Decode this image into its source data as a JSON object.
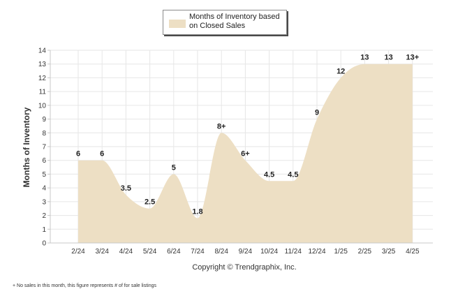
{
  "chart_data": {
    "type": "area",
    "title": "",
    "xlabel": "",
    "ylabel": "Months of Inventory",
    "ylim": [
      0,
      14
    ],
    "ytick_step": 1,
    "grid": true,
    "legend_position": "top-center",
    "categories": [
      "2/24",
      "3/24",
      "4/24",
      "5/24",
      "6/24",
      "7/24",
      "8/24",
      "9/24",
      "10/24",
      "11/24",
      "12/24",
      "1/25",
      "2/25",
      "3/25",
      "4/25"
    ],
    "series": [
      {
        "name": "Months of Inventory based on Closed Sales",
        "values": [
          6,
          6,
          3.5,
          2.5,
          5,
          1.8,
          8,
          6,
          4.5,
          4.5,
          9,
          12,
          13,
          13,
          13
        ],
        "data_labels": [
          "6",
          "6",
          "3.5",
          "2.5",
          "5",
          "1.8",
          "8+",
          "6+",
          "4.5",
          "4.5",
          "9",
          "12",
          "13",
          "13",
          "13+"
        ],
        "color": "#eddfc4"
      }
    ]
  },
  "credit": "Copyright © Trendgraphix, Inc.",
  "footnote": "+ No sales in this month, this figure represents # of for sale listings",
  "colors": {
    "area_fill": "#eddfc4",
    "grid": "#e6e6e6",
    "axis": "#c8c8c8",
    "text": "#222222"
  }
}
